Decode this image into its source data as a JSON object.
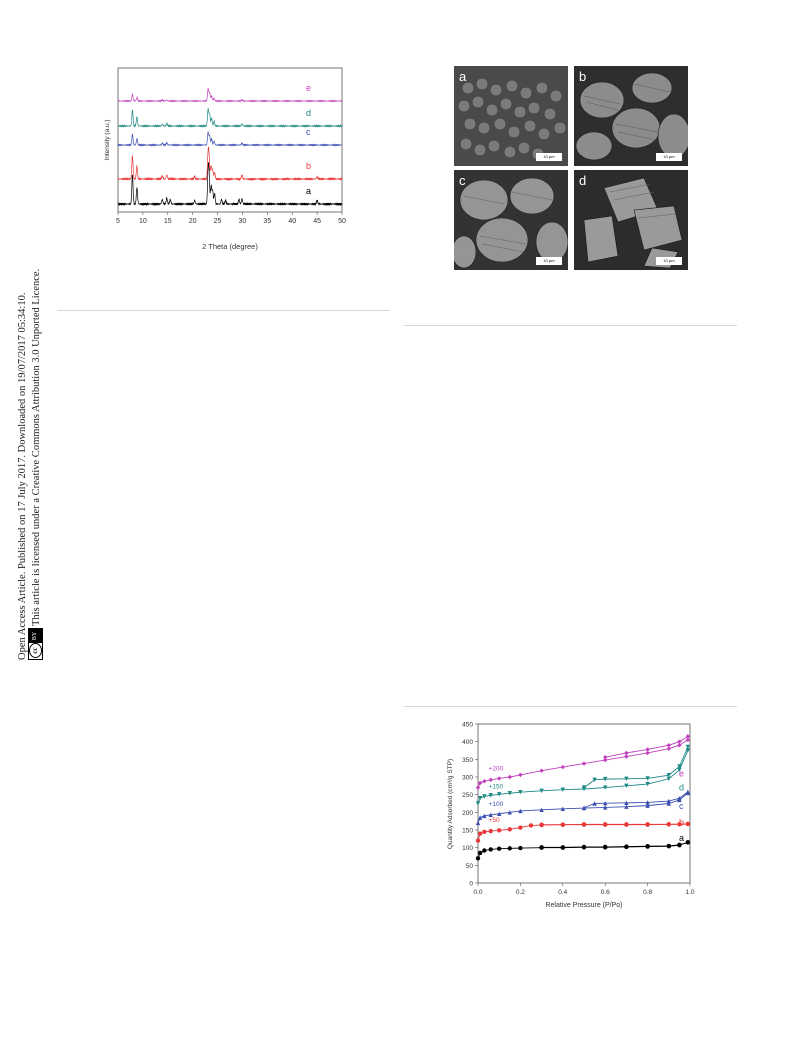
{
  "side_notice": {
    "line1": "Open Access Article. Published on 17 July 2017. Downloaded on 19/07/2017 05:34:10.",
    "line2": "This article is licensed under a Creative Commons Attribution 3.0 Unported Licence.",
    "badge_cc": "cc",
    "badge_by": "BY"
  },
  "xrd": {
    "chart_data": {
      "type": "line",
      "xlabel": "2 Theta (degree)",
      "ylabel": "Intensity (a.u.)",
      "xlim": [
        5,
        50
      ],
      "x_ticks": [
        "5",
        "10",
        "15",
        "20",
        "25",
        "30",
        "35",
        "40",
        "45",
        "50"
      ],
      "series": [
        {
          "name": "a",
          "color": "#000000",
          "peaks": [
            [
              7.9,
              1.0
            ],
            [
              8.8,
              0.55
            ],
            [
              13.9,
              0.15
            ],
            [
              14.8,
              0.2
            ],
            [
              15.5,
              0.15
            ],
            [
              20.4,
              0.12
            ],
            [
              23.1,
              1.05
            ],
            [
              23.3,
              0.9
            ],
            [
              23.7,
              0.6
            ],
            [
              24.0,
              0.45
            ],
            [
              24.4,
              0.35
            ],
            [
              25.8,
              0.15
            ],
            [
              26.6,
              0.12
            ],
            [
              29.3,
              0.15
            ],
            [
              29.9,
              0.18
            ],
            [
              45.0,
              0.12
            ]
          ]
        },
        {
          "name": "b",
          "color": "#e8393a",
          "peaks": [
            [
              7.9,
              0.9
            ],
            [
              8.8,
              0.5
            ],
            [
              13.9,
              0.12
            ],
            [
              14.8,
              0.15
            ],
            [
              20.4,
              0.1
            ],
            [
              23.1,
              0.95
            ],
            [
              23.3,
              0.75
            ],
            [
              23.7,
              0.5
            ],
            [
              24.0,
              0.35
            ],
            [
              24.4,
              0.25
            ],
            [
              29.9,
              0.15
            ],
            [
              45.0,
              0.08
            ]
          ]
        },
        {
          "name": "c",
          "color": "#3d4fb0",
          "peaks": [
            [
              7.9,
              0.6
            ],
            [
              8.8,
              0.35
            ],
            [
              13.9,
              0.1
            ],
            [
              14.8,
              0.12
            ],
            [
              23.1,
              0.7
            ],
            [
              23.4,
              0.5
            ],
            [
              23.8,
              0.35
            ],
            [
              24.3,
              0.2
            ],
            [
              29.9,
              0.1
            ]
          ]
        },
        {
          "name": "d",
          "color": "#1f8a85",
          "peaks": [
            [
              7.9,
              0.8
            ],
            [
              8.8,
              0.45
            ],
            [
              13.9,
              0.1
            ],
            [
              14.8,
              0.12
            ],
            [
              23.1,
              0.85
            ],
            [
              23.4,
              0.6
            ],
            [
              23.8,
              0.4
            ],
            [
              24.3,
              0.25
            ],
            [
              29.9,
              0.12
            ]
          ]
        },
        {
          "name": "e",
          "color": "#c23fbf",
          "peaks": [
            [
              7.9,
              0.45
            ],
            [
              8.8,
              0.25
            ],
            [
              13.9,
              0.08
            ],
            [
              14.8,
              0.08
            ],
            [
              23.1,
              0.8
            ],
            [
              23.4,
              0.55
            ],
            [
              23.8,
              0.35
            ],
            [
              24.3,
              0.2
            ],
            [
              29.9,
              0.08
            ]
          ]
        }
      ]
    }
  },
  "sem": {
    "panels": [
      {
        "letter": "a",
        "scale": "10 μm"
      },
      {
        "letter": "b",
        "scale": "10 μm"
      },
      {
        "letter": "c",
        "scale": "10 μm"
      },
      {
        "letter": "d",
        "scale": "10 μm"
      }
    ]
  },
  "iso": {
    "chart_data": {
      "type": "line",
      "xlabel": "Relative Pressure (P/Po)",
      "ylabel": "Quantity Adsorbed (cm³/g STP)",
      "xlim": [
        0.0,
        1.0
      ],
      "ylim": [
        0,
        450
      ],
      "x_ticks": [
        "0.0",
        "0.2",
        "0.4",
        "0.6",
        "0.8",
        "1.0"
      ],
      "y_ticks": [
        "0",
        "50",
        "100",
        "150",
        "200",
        "250",
        "300",
        "350",
        "400",
        "450"
      ],
      "series": [
        {
          "name": "a",
          "offset_label": "",
          "color": "#000000",
          "marker": "circle",
          "adsorption": [
            [
              0.0,
              70
            ],
            [
              0.01,
              85
            ],
            [
              0.03,
              92
            ],
            [
              0.06,
              95
            ],
            [
              0.1,
              97
            ],
            [
              0.15,
              98
            ],
            [
              0.2,
              99
            ],
            [
              0.3,
              100
            ],
            [
              0.4,
              100
            ],
            [
              0.5,
              101
            ],
            [
              0.6,
              101
            ],
            [
              0.7,
              102
            ],
            [
              0.8,
              103
            ],
            [
              0.9,
              104
            ],
            [
              0.95,
              107
            ],
            [
              0.99,
              115
            ]
          ],
          "desorption": [
            [
              0.99,
              115
            ],
            [
              0.95,
              108
            ],
            [
              0.9,
              105
            ],
            [
              0.8,
              104
            ],
            [
              0.7,
              103
            ],
            [
              0.6,
              102
            ],
            [
              0.5,
              102
            ],
            [
              0.4,
              101
            ],
            [
              0.3,
              101
            ]
          ]
        },
        {
          "name": "b",
          "offset_label": "+50",
          "color": "#e8393a",
          "marker": "circle",
          "adsorption": [
            [
              0.0,
              120
            ],
            [
              0.01,
              140
            ],
            [
              0.03,
              145
            ],
            [
              0.06,
              147
            ],
            [
              0.1,
              149
            ],
            [
              0.15,
              152
            ],
            [
              0.2,
              157
            ],
            [
              0.25,
              163
            ],
            [
              0.3,
              164
            ],
            [
              0.4,
              165
            ],
            [
              0.5,
              165
            ],
            [
              0.6,
              165
            ],
            [
              0.7,
              165
            ],
            [
              0.8,
              165
            ],
            [
              0.9,
              166
            ],
            [
              0.95,
              166
            ],
            [
              0.99,
              167
            ]
          ],
          "desorption": [
            [
              0.99,
              167
            ],
            [
              0.9,
              166
            ],
            [
              0.8,
              166
            ],
            [
              0.7,
              166
            ],
            [
              0.6,
              166
            ],
            [
              0.5,
              166
            ],
            [
              0.4,
              165
            ],
            [
              0.3,
              165
            ]
          ]
        },
        {
          "name": "c",
          "offset_label": "+100",
          "color": "#3d4fb0",
          "marker": "triangle",
          "adsorption": [
            [
              0.0,
              170
            ],
            [
              0.01,
              185
            ],
            [
              0.03,
              190
            ],
            [
              0.06,
              193
            ],
            [
              0.1,
              196
            ],
            [
              0.15,
              200
            ],
            [
              0.2,
              204
            ],
            [
              0.3,
              207
            ],
            [
              0.4,
              210
            ],
            [
              0.5,
              212
            ],
            [
              0.6,
              214
            ],
            [
              0.7,
              216
            ],
            [
              0.8,
              219
            ],
            [
              0.9,
              225
            ],
            [
              0.95,
              235
            ],
            [
              0.99,
              255
            ]
          ],
          "desorption": [
            [
              0.99,
              258
            ],
            [
              0.95,
              240
            ],
            [
              0.9,
              232
            ],
            [
              0.8,
              228
            ],
            [
              0.7,
              227
            ],
            [
              0.6,
              226
            ],
            [
              0.55,
              225
            ],
            [
              0.5,
              213
            ]
          ]
        },
        {
          "name": "d",
          "offset_label": "+150",
          "color": "#1f8a85",
          "marker": "triangle-down",
          "adsorption": [
            [
              0.0,
              225
            ],
            [
              0.01,
              240
            ],
            [
              0.03,
              245
            ],
            [
              0.06,
              248
            ],
            [
              0.1,
              251
            ],
            [
              0.15,
              254
            ],
            [
              0.2,
              257
            ],
            [
              0.3,
              261
            ],
            [
              0.4,
              264
            ],
            [
              0.5,
              266
            ],
            [
              0.6,
              270
            ],
            [
              0.7,
              275
            ],
            [
              0.8,
              280
            ],
            [
              0.9,
              295
            ],
            [
              0.95,
              320
            ],
            [
              0.99,
              375
            ]
          ],
          "desorption": [
            [
              0.99,
              385
            ],
            [
              0.95,
              330
            ],
            [
              0.9,
              305
            ],
            [
              0.8,
              296
            ],
            [
              0.7,
              295
            ],
            [
              0.6,
              294
            ],
            [
              0.55,
              292
            ],
            [
              0.5,
              270
            ]
          ]
        },
        {
          "name": "e",
          "offset_label": "+200",
          "color": "#c23fbf",
          "marker": "diamond",
          "adsorption": [
            [
              0.0,
              270
            ],
            [
              0.01,
              283
            ],
            [
              0.03,
              288
            ],
            [
              0.06,
              292
            ],
            [
              0.1,
              296
            ],
            [
              0.15,
              300
            ],
            [
              0.2,
              306
            ],
            [
              0.3,
              318
            ],
            [
              0.4,
              328
            ],
            [
              0.5,
              338
            ],
            [
              0.6,
              348
            ],
            [
              0.7,
              358
            ],
            [
              0.8,
              368
            ],
            [
              0.9,
              380
            ],
            [
              0.95,
              390
            ],
            [
              0.99,
              405
            ]
          ],
          "desorption": [
            [
              0.99,
              415
            ],
            [
              0.95,
              400
            ],
            [
              0.9,
              390
            ],
            [
              0.8,
              378
            ],
            [
              0.7,
              368
            ],
            [
              0.6,
              356
            ]
          ]
        }
      ]
    }
  }
}
